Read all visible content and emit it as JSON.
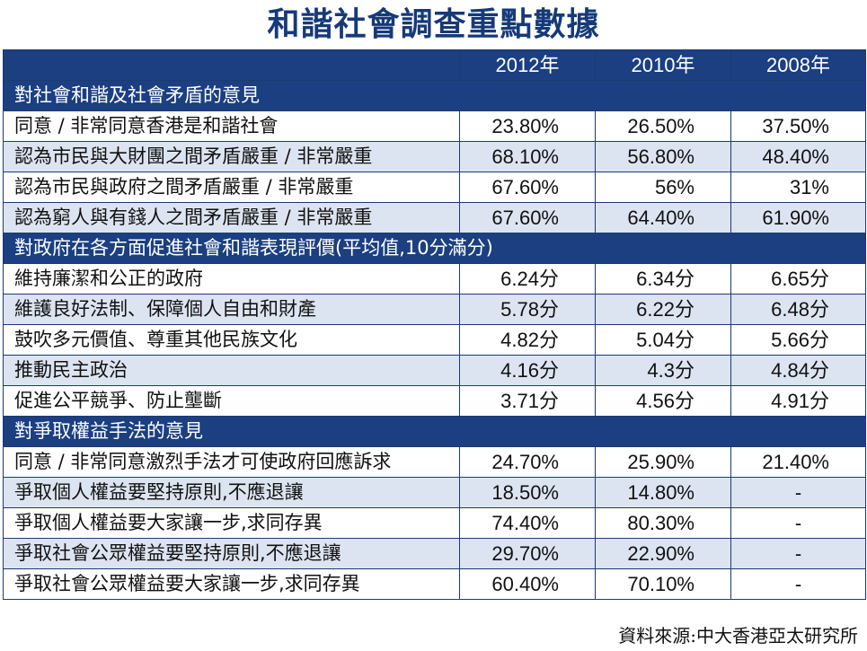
{
  "title": "和諧社會調查重點數據",
  "header": {
    "blank": "",
    "years": [
      "2012年",
      "2010年",
      "2008年"
    ]
  },
  "sections": [
    {
      "heading": "對社會和諧及社會矛盾的意見",
      "rows": [
        {
          "label": "同意 / 非常同意香港是和諧社會",
          "values": [
            "23.80%",
            "26.50%",
            "37.50%"
          ]
        },
        {
          "label": "認為市民與大財團之間矛盾嚴重 / 非常嚴重",
          "values": [
            "68.10%",
            "56.80%",
            "48.40%"
          ]
        },
        {
          "label": "認為市民與政府之間矛盾嚴重 / 非常嚴重",
          "values": [
            "67.60%",
            "56%",
            "31%"
          ]
        },
        {
          "label": "認為窮人與有錢人之間矛盾嚴重 / 非常嚴重",
          "values": [
            "67.60%",
            "64.40%",
            "61.90%"
          ]
        }
      ]
    },
    {
      "heading": "對政府在各方面促進社會和諧表現評價(平均值,10分滿分)",
      "rows": [
        {
          "label": "維持廉潔和公正的政府",
          "values": [
            "6.24分",
            "6.34分",
            "6.65分"
          ]
        },
        {
          "label": "維護良好法制、保障個人自由和財產",
          "values": [
            "5.78分",
            "6.22分",
            "6.48分"
          ]
        },
        {
          "label": "鼓吹多元價值、尊重其他民族文化",
          "values": [
            "4.82分",
            "5.04分",
            "5.66分"
          ]
        },
        {
          "label": "推動民主政治",
          "values": [
            "4.16分",
            "4.3分",
            "4.84分"
          ]
        },
        {
          "label": "促進公平競爭、防止壟斷",
          "values": [
            "3.71分",
            "4.56分",
            "4.91分"
          ]
        }
      ]
    },
    {
      "heading": "對爭取權益手法的意見",
      "rows": [
        {
          "label": "同意 / 非常同意激烈手法才可使政府回應訴求",
          "values": [
            "24.70%",
            "25.90%",
            "21.40%"
          ]
        },
        {
          "label": "爭取個人權益要堅持原則,不應退讓",
          "values": [
            "18.50%",
            "14.80%",
            "-"
          ]
        },
        {
          "label": "爭取個人權益要大家讓一步,求同存異",
          "values": [
            "74.40%",
            "80.30%",
            "-"
          ]
        },
        {
          "label": "爭取社會公眾權益要堅持原則,不應退讓",
          "values": [
            "29.70%",
            "22.90%",
            "-"
          ]
        },
        {
          "label": "爭取社會公眾權益要大家讓一步,求同存異",
          "values": [
            "60.40%",
            "70.10%",
            "-"
          ]
        }
      ]
    }
  ],
  "source": "資料來源:中大香港亞太研究所",
  "colors": {
    "header_bg": "#1b3f80",
    "alt_row_bg": "#dde4f1",
    "title": "#163a78"
  }
}
